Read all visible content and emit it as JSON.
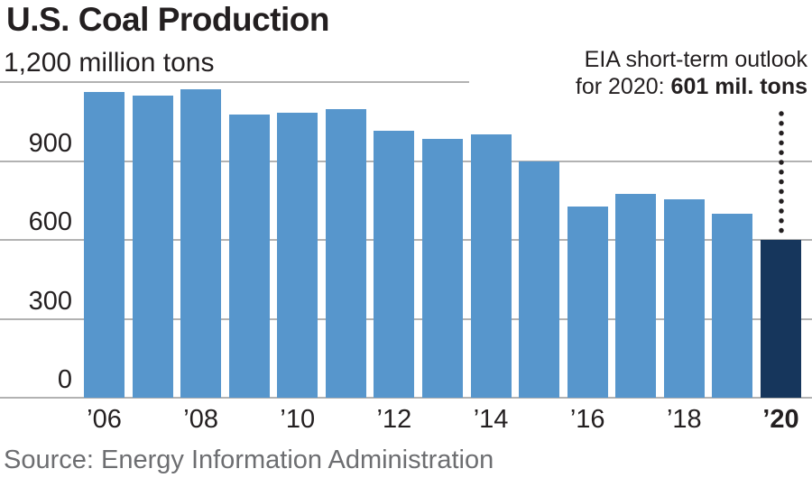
{
  "title": "U.S. Coal Production",
  "y_axis_units_label": "1,200 million tons",
  "annotation": {
    "line1": "EIA short-term outlook",
    "line2_prefix": "for 2020: ",
    "line2_value": "601 mil. tons"
  },
  "source": "Source: Energy Information Administration",
  "colors": {
    "bar": "#5796cc",
    "highlight_bar": "#16365c",
    "gridline": "#b2b2b2",
    "text": "#231f20",
    "source_text": "#6d6e71"
  },
  "chart_data": {
    "type": "bar",
    "title": "U.S. Coal Production",
    "ylabel": "million tons",
    "years": [
      2006,
      2007,
      2008,
      2009,
      2010,
      2011,
      2012,
      2013,
      2014,
      2015,
      2016,
      2017,
      2018,
      2019,
      2020
    ],
    "values": [
      1163,
      1147,
      1172,
      1075,
      1084,
      1096,
      1016,
      985,
      1000,
      897,
      728,
      775,
      756,
      700,
      601
    ],
    "highlight_index": 14,
    "highlight_note": "EIA short-term outlook for 2020: 601 mil. tons",
    "x_tick_labels": [
      "’06",
      "’08",
      "’10",
      "’12",
      "’14",
      "’16",
      "’18",
      "’20"
    ],
    "y_ticks": [
      0,
      300,
      600,
      900,
      1200
    ],
    "ylim": [
      0,
      1200
    ],
    "grid": true,
    "legend": false
  }
}
